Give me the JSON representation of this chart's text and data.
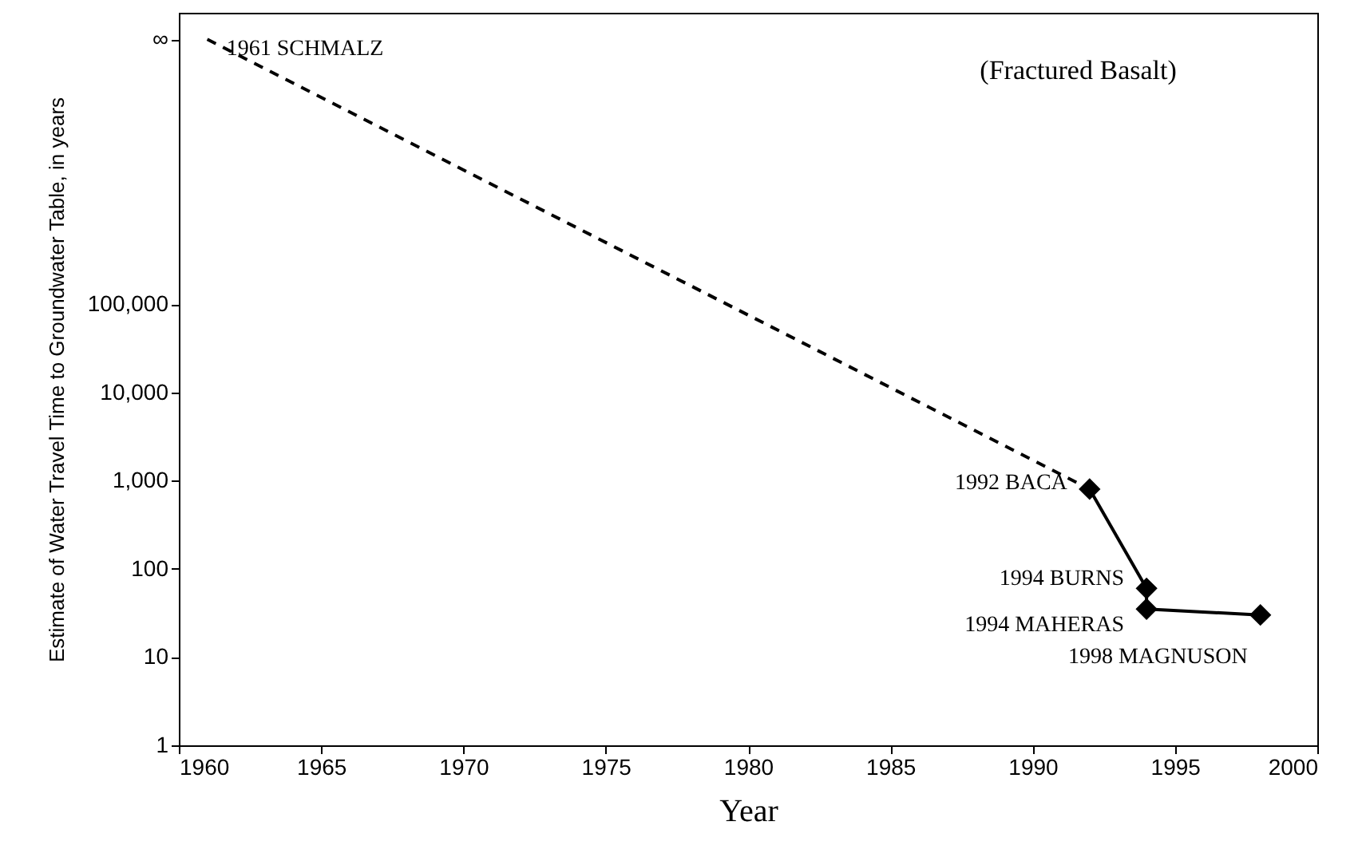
{
  "chart_data": {
    "type": "line",
    "xlabel": "Year",
    "ylabel": "Estimate of Water Travel Time to Groundwater Table, in years",
    "xlim": [
      1960,
      2000
    ],
    "xticks": [
      1960,
      1965,
      1970,
      1975,
      1980,
      1985,
      1990,
      1995,
      2000
    ],
    "ylim": [
      1,
      200000000
    ],
    "log": "y",
    "yticks": [
      1,
      10,
      100,
      {
        "value": 1000,
        "label": "1,000"
      },
      {
        "value": 10000,
        "label": "10,000"
      },
      {
        "value": 100000,
        "label": "100,000"
      },
      {
        "value": 100000000,
        "label": "∞"
      }
    ],
    "grid": false,
    "series": [
      {
        "color": "#000000",
        "x": [
          1961,
          1992
        ],
        "values": [
          100000000,
          800
        ],
        "line_style": "dashed"
      },
      {
        "color": "#000000",
        "x": [
          1992,
          1994,
          1994,
          1998
        ],
        "values": [
          800,
          60,
          35,
          30
        ],
        "line_style": "solid",
        "marker": "diamond"
      }
    ],
    "annotations": [
      {
        "text": "1961 SCHMALZ",
        "x": 1961,
        "y": 100000000
      },
      {
        "text": "1992 BACA",
        "x": 1992,
        "y": 800
      },
      {
        "text": "1994 BURNS",
        "x": 1994,
        "y": 60
      },
      {
        "text": "1994 MAHERAS",
        "x": 1994,
        "y": 35
      },
      {
        "text": "1998 MAGNUSON",
        "x": 1998,
        "y": 30
      },
      "(Fractured Basalt)"
    ]
  }
}
